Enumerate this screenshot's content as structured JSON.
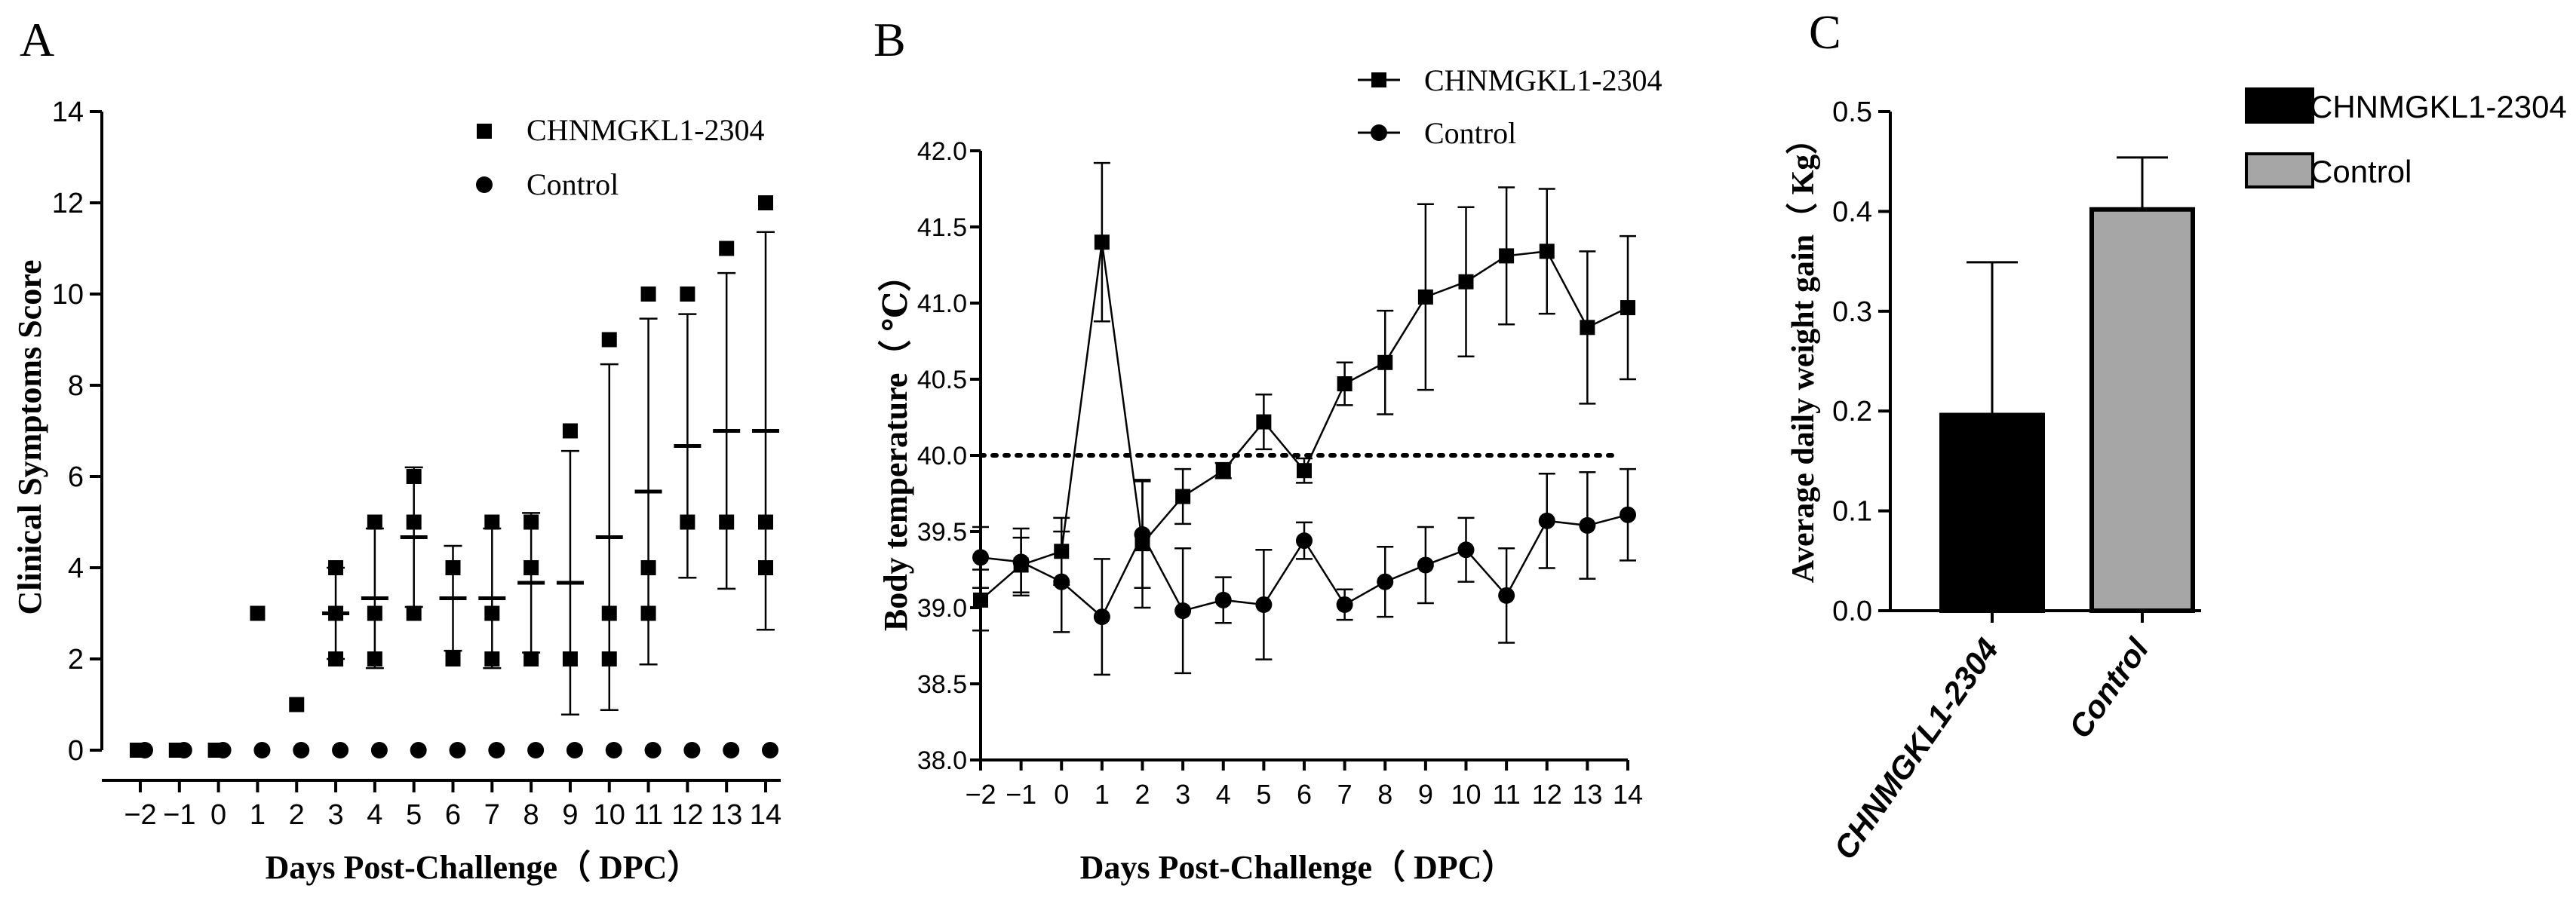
{
  "chart_data": [
    {
      "panel": "A",
      "type": "scatter",
      "xlabel": "Days Post-Challenge（ DPC）",
      "ylabel": "Clinical Symptoms Score",
      "x_ticks": [
        -2,
        -1,
        0,
        1,
        2,
        3,
        4,
        5,
        6,
        7,
        8,
        9,
        10,
        11,
        12,
        13,
        14
      ],
      "y_ticks": [
        0,
        2,
        4,
        6,
        8,
        10,
        12,
        14
      ],
      "xlim": [
        -2,
        14
      ],
      "ylim": [
        0,
        14
      ],
      "legend_position": "top-right",
      "series": [
        {
          "name": "CHNMGKL1-2304",
          "marker": "square",
          "points": [
            {
              "day": -2,
              "values": [
                0,
                0,
                0
              ],
              "mean": 0,
              "err": 0
            },
            {
              "day": -1,
              "values": [
                0,
                0,
                0
              ],
              "mean": 0,
              "err": 0
            },
            {
              "day": 0,
              "values": [
                0,
                0,
                0
              ],
              "mean": 0,
              "err": 0
            },
            {
              "day": 1,
              "values": [
                3,
                3,
                3
              ],
              "mean": 3,
              "err": 0
            },
            {
              "day": 2,
              "values": [
                1,
                1,
                1
              ],
              "mean": 1,
              "err": 0
            },
            {
              "day": 3,
              "values": [
                2,
                3,
                4
              ],
              "mean": 3,
              "err": 1.0
            },
            {
              "day": 4,
              "values": [
                2,
                3,
                5
              ],
              "mean": 3.33,
              "err": 1.53
            },
            {
              "day": 5,
              "values": [
                3,
                5,
                6
              ],
              "mean": 4.67,
              "err": 1.53
            },
            {
              "day": 6,
              "values": [
                2,
                4,
                4
              ],
              "mean": 3.33,
              "err": 1.15
            },
            {
              "day": 7,
              "values": [
                2,
                3,
                5
              ],
              "mean": 3.33,
              "err": 1.53
            },
            {
              "day": 8,
              "values": [
                2,
                4,
                5
              ],
              "mean": 3.67,
              "err": 1.53
            },
            {
              "day": 9,
              "values": [
                2,
                2,
                7
              ],
              "mean": 3.67,
              "err": 2.89
            },
            {
              "day": 10,
              "values": [
                2,
                3,
                9
              ],
              "mean": 4.67,
              "err": 3.79
            },
            {
              "day": 11,
              "values": [
                3,
                4,
                10
              ],
              "mean": 5.67,
              "err": 3.79
            },
            {
              "day": 12,
              "values": [
                5,
                5,
                10
              ],
              "mean": 6.67,
              "err": 2.89
            },
            {
              "day": 13,
              "values": [
                5,
                5,
                11
              ],
              "mean": 7.0,
              "err": 3.46
            },
            {
              "day": 14,
              "values": [
                4,
                5,
                12
              ],
              "mean": 7.0,
              "err": 4.36
            }
          ]
        },
        {
          "name": "Control",
          "marker": "circle",
          "points": [
            {
              "day": -2,
              "values": [
                0
              ]
            },
            {
              "day": -1,
              "values": [
                0
              ]
            },
            {
              "day": 0,
              "values": [
                0
              ]
            },
            {
              "day": 1,
              "values": [
                0
              ]
            },
            {
              "day": 2,
              "values": [
                0
              ]
            },
            {
              "day": 3,
              "values": [
                0
              ]
            },
            {
              "day": 4,
              "values": [
                0
              ]
            },
            {
              "day": 5,
              "values": [
                0
              ]
            },
            {
              "day": 6,
              "values": [
                0
              ]
            },
            {
              "day": 7,
              "values": [
                0
              ]
            },
            {
              "day": 8,
              "values": [
                0
              ]
            },
            {
              "day": 9,
              "values": [
                0
              ]
            },
            {
              "day": 10,
              "values": [
                0
              ]
            },
            {
              "day": 11,
              "values": [
                0
              ]
            },
            {
              "day": 12,
              "values": [
                0
              ]
            },
            {
              "day": 13,
              "values": [
                0
              ]
            },
            {
              "day": 14,
              "values": [
                0
              ]
            }
          ]
        }
      ]
    },
    {
      "panel": "B",
      "type": "line",
      "xlabel": "Days Post-Challenge（ DPC）",
      "ylabel": "Body temperature（ ℃）",
      "x_ticks": [
        -2,
        -1,
        0,
        1,
        2,
        3,
        4,
        5,
        6,
        7,
        8,
        9,
        10,
        11,
        12,
        13,
        14
      ],
      "y_ticks": [
        "38.0",
        "38.5",
        "39.0",
        "39.5",
        "40.0",
        "40.5",
        "41.0",
        "41.5",
        "42.0"
      ],
      "xlim": [
        -2,
        14
      ],
      "ylim": [
        38.0,
        42.0
      ],
      "reference_line": 40.0,
      "legend_position": "top-right",
      "series": [
        {
          "name": "CHNMGKL1-2304",
          "marker": "square",
          "x": [
            -2,
            -1,
            0,
            1,
            2,
            3,
            4,
            5,
            6,
            7,
            8,
            9,
            10,
            11,
            12,
            13,
            14
          ],
          "values": [
            39.05,
            39.28,
            39.37,
            41.4,
            39.42,
            39.73,
            39.9,
            40.22,
            39.9,
            40.47,
            40.61,
            41.04,
            41.14,
            41.31,
            41.34,
            40.84,
            40.97
          ],
          "errors": [
            0.2,
            0.18,
            0.22,
            0.52,
            0.42,
            0.18,
            0.05,
            0.18,
            0.08,
            0.14,
            0.34,
            0.61,
            0.49,
            0.45,
            0.41,
            0.5,
            0.47
          ]
        },
        {
          "name": "Control",
          "marker": "circle",
          "x": [
            -2,
            -1,
            0,
            1,
            2,
            3,
            4,
            5,
            6,
            7,
            8,
            9,
            10,
            11,
            12,
            13,
            14
          ],
          "values": [
            39.33,
            39.3,
            39.17,
            38.94,
            39.48,
            38.98,
            39.05,
            39.02,
            39.44,
            39.02,
            39.17,
            39.28,
            39.38,
            39.08,
            39.57,
            39.54,
            39.61
          ],
          "errors": [
            0.2,
            0.22,
            0.33,
            0.38,
            0.35,
            0.41,
            0.15,
            0.36,
            0.12,
            0.1,
            0.23,
            0.25,
            0.21,
            0.31,
            0.31,
            0.35,
            0.3
          ]
        }
      ]
    },
    {
      "panel": "C",
      "type": "bar",
      "categories": [
        "CHNMGKL1-2304",
        "Control"
      ],
      "values": [
        0.196,
        0.402
      ],
      "errors": [
        0.153,
        0.052
      ],
      "colors": [
        "#000000",
        "#a6a6a6"
      ],
      "ylabel": "Average daily weight gain（ Kg）",
      "y_ticks": [
        "0.0",
        "0.1",
        "0.2",
        "0.3",
        "0.4",
        "0.5"
      ],
      "ylim": [
        0.0,
        0.5
      ],
      "legend": [
        "CHNMGKL1-2304",
        "Control"
      ],
      "legend_position": "top-right"
    }
  ],
  "panel_labels": [
    "A",
    "B",
    "C"
  ]
}
